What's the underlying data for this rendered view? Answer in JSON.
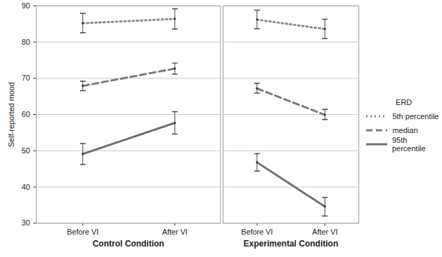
{
  "chart_data": {
    "type": "line",
    "y_label": "Self-reported mood",
    "legend_title": "ERD",
    "legend": "right",
    "grid": true,
    "ylim": [
      30,
      90
    ],
    "yticks": [
      30,
      40,
      50,
      60,
      70,
      80,
      90
    ],
    "categories": [
      "Before VI",
      "After VI"
    ],
    "panels": [
      {
        "x_label": "Control Condition",
        "series": [
          {
            "name": "5th percentile",
            "color": "#8a8a8a",
            "line_style": "dotted",
            "values": [
              85.2,
              86.4
            ],
            "error_low": [
              82.6,
              83.6
            ],
            "error_high": [
              87.9,
              89.2
            ]
          },
          {
            "name": "median",
            "color": "#7a7a7a",
            "line_style": "dashed",
            "values": [
              67.9,
              72.7
            ],
            "error_low": [
              66.6,
              71.2
            ],
            "error_high": [
              69.2,
              74.2
            ]
          },
          {
            "name": "95th percentile",
            "color": "#707070",
            "line_style": "solid",
            "values": [
              49.1,
              57.7
            ],
            "error_low": [
              46.2,
              54.6
            ],
            "error_high": [
              52.0,
              60.8
            ]
          }
        ]
      },
      {
        "x_label": "Experimental Condition",
        "tick_labels": "x",
        "series": [
          {
            "name": "5th percentile",
            "color": "#8a8a8a",
            "line_style": "dotted",
            "values": [
              86.2,
              83.6
            ],
            "error_low": [
              83.7,
              81.0
            ],
            "error_high": [
              88.8,
              86.3
            ]
          },
          {
            "name": "median",
            "color": "#7a7a7a",
            "line_style": "dashed",
            "values": [
              67.2,
              59.9
            ],
            "error_low": [
              65.9,
              58.6
            ],
            "error_high": [
              68.6,
              61.4
            ]
          },
          {
            "name": "95th percentile",
            "color": "#707070",
            "line_style": "solid",
            "values": [
              46.8,
              34.6
            ],
            "error_low": [
              44.4,
              32.0
            ],
            "error_high": [
              49.2,
              37.1
            ]
          }
        ]
      }
    ]
  }
}
